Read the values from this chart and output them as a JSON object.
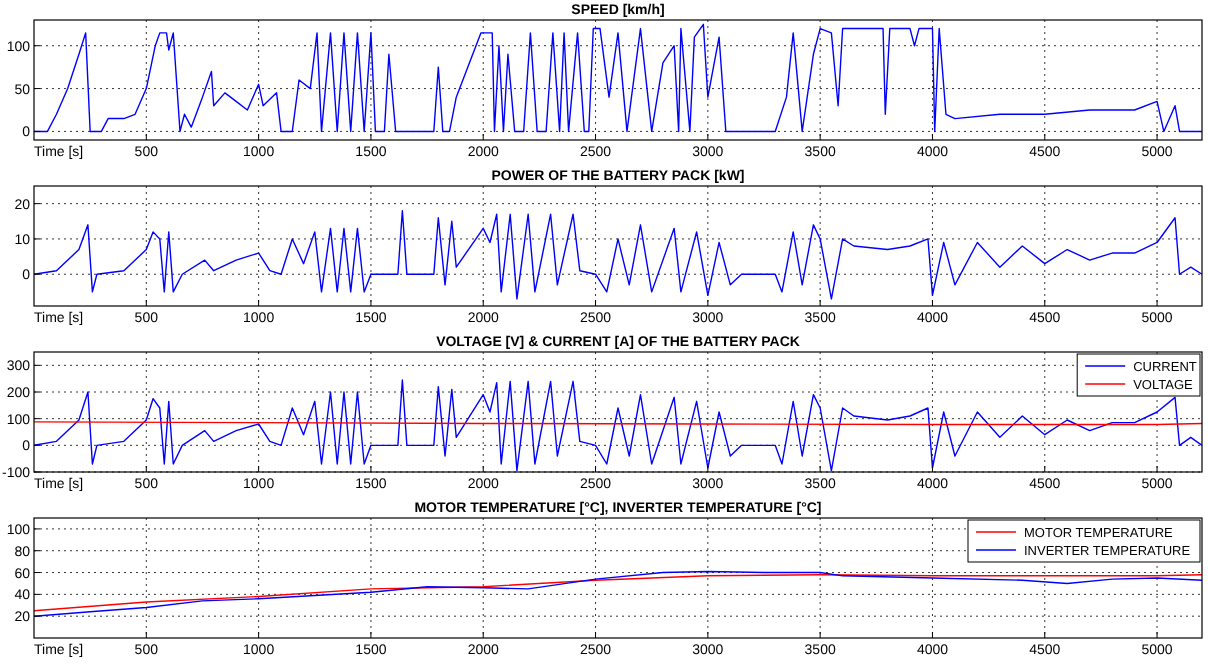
{
  "chart_data": [
    {
      "type": "line",
      "title": "SPEED [km/h]",
      "xlabel": "Time [s]",
      "xlim": [
        0,
        5200
      ],
      "xticks": [
        500,
        1000,
        1500,
        2000,
        2500,
        3000,
        3500,
        4000,
        4500,
        5000
      ],
      "ylim": [
        -10,
        130
      ],
      "yticks": [
        0,
        50,
        100
      ],
      "grid": true,
      "legend": false,
      "series": [
        {
          "color": "#0000ff",
          "x": [
            0,
            60,
            100,
            150,
            200,
            230,
            250,
            300,
            330,
            400,
            450,
            500,
            540,
            560,
            590,
            600,
            620,
            650,
            670,
            700,
            750,
            790,
            800,
            850,
            900,
            950,
            1000,
            1020,
            1080,
            1100,
            1150,
            1180,
            1230,
            1260,
            1280,
            1320,
            1350,
            1380,
            1410,
            1440,
            1470,
            1500,
            1520,
            1560,
            1580,
            1610,
            1780,
            1800,
            1820,
            1850,
            1880,
            1990,
            2040,
            2050,
            2070,
            2090,
            2110,
            2140,
            2180,
            2210,
            2240,
            2280,
            2310,
            2340,
            2360,
            2380,
            2420,
            2450,
            2470,
            2490,
            2520,
            2560,
            2600,
            2640,
            2700,
            2750,
            2800,
            2850,
            2870,
            2880,
            2920,
            2940,
            2980,
            3000,
            3050,
            3080,
            3300,
            3350,
            3380,
            3420,
            3470,
            3500,
            3550,
            3580,
            3600,
            3780,
            3790,
            3810,
            3900,
            3920,
            3940,
            4000,
            4010,
            4030,
            4060,
            4100,
            4300,
            4500,
            4700,
            4900,
            5000,
            5030,
            5080,
            5100,
            5200
          ],
          "values": [
            0,
            0,
            20,
            50,
            90,
            115,
            0,
            0,
            15,
            15,
            20,
            50,
            100,
            115,
            115,
            95,
            115,
            0,
            20,
            5,
            40,
            70,
            30,
            45,
            35,
            25,
            55,
            30,
            45,
            0,
            0,
            60,
            50,
            115,
            0,
            115,
            0,
            115,
            0,
            115,
            0,
            115,
            0,
            0,
            90,
            0,
            0,
            75,
            0,
            0,
            40,
            115,
            115,
            0,
            100,
            0,
            90,
            0,
            0,
            115,
            0,
            0,
            115,
            0,
            115,
            0,
            115,
            0,
            0,
            120,
            120,
            40,
            115,
            0,
            120,
            0,
            80,
            100,
            0,
            120,
            0,
            110,
            125,
            40,
            110,
            0,
            0,
            40,
            115,
            0,
            90,
            120,
            115,
            30,
            120,
            120,
            20,
            120,
            120,
            100,
            120,
            120,
            0,
            120,
            20,
            15,
            20,
            20,
            25,
            25,
            35,
            0,
            30,
            0,
            0
          ]
        }
      ]
    },
    {
      "type": "line",
      "title": "POWER OF THE BATTERY PACK [kW]",
      "xlabel": "Time [s]",
      "xlim": [
        0,
        5200
      ],
      "xticks": [
        500,
        1000,
        1500,
        2000,
        2500,
        3000,
        3500,
        4000,
        4500,
        5000
      ],
      "ylim": [
        -9,
        25
      ],
      "yticks": [
        0,
        10,
        20
      ],
      "grid": true,
      "legend": false,
      "series": [
        {
          "color": "#0000ff",
          "x": [
            0,
            100,
            200,
            240,
            260,
            280,
            400,
            500,
            530,
            560,
            580,
            600,
            620,
            660,
            760,
            800,
            900,
            1000,
            1050,
            1100,
            1150,
            1200,
            1250,
            1280,
            1320,
            1350,
            1380,
            1410,
            1440,
            1470,
            1500,
            1620,
            1640,
            1660,
            1780,
            1800,
            1830,
            1860,
            1880,
            2000,
            2030,
            2060,
            2080,
            2120,
            2150,
            2200,
            2230,
            2300,
            2330,
            2400,
            2430,
            2500,
            2550,
            2600,
            2650,
            2700,
            2750,
            2850,
            2880,
            2950,
            3000,
            3050,
            3100,
            3150,
            3300,
            3330,
            3380,
            3420,
            3470,
            3500,
            3550,
            3600,
            3650,
            3800,
            3900,
            3980,
            4000,
            4050,
            4100,
            4200,
            4300,
            4400,
            4500,
            4600,
            4700,
            4800,
            4900,
            5000,
            5080,
            5100,
            5150,
            5200
          ],
          "values": [
            0,
            1,
            7,
            14,
            -5,
            0,
            1,
            7,
            12,
            10,
            -5,
            12,
            -5,
            0,
            4,
            1,
            4,
            6,
            1,
            0,
            10,
            3,
            12,
            -5,
            13,
            -5,
            13,
            -5,
            13,
            -5,
            0,
            0,
            18,
            0,
            0,
            16,
            -3,
            15,
            2,
            13,
            9,
            17,
            -5,
            17,
            -7,
            17,
            -5,
            17,
            -3,
            17,
            1,
            0,
            -5,
            10,
            -3,
            14,
            -5,
            13,
            -5,
            12,
            -6,
            9,
            -3,
            0,
            0,
            -5,
            12,
            -3,
            14,
            10,
            -7,
            10,
            8,
            7,
            8,
            10,
            -6,
            9,
            -3,
            9,
            2,
            8,
            3,
            7,
            4,
            6,
            6,
            9,
            16,
            0,
            2,
            0
          ]
        }
      ]
    },
    {
      "type": "line",
      "title": "VOLTAGE [V] & CURRENT [A] OF THE BATTERY PACK",
      "xlabel": "Time [s]",
      "xlim": [
        0,
        5200
      ],
      "xticks": [
        500,
        1000,
        1500,
        2000,
        2500,
        3000,
        3500,
        4000,
        4500,
        5000
      ],
      "ylim": [
        -100,
        350
      ],
      "yticks": [
        -100,
        0,
        100,
        200,
        300
      ],
      "grid": true,
      "legend": "top right",
      "series": [
        {
          "name": "CURRENT",
          "color": "#0000ff",
          "x": [
            0,
            100,
            200,
            240,
            260,
            280,
            400,
            500,
            530,
            560,
            580,
            600,
            620,
            660,
            760,
            800,
            900,
            1000,
            1050,
            1100,
            1150,
            1200,
            1250,
            1280,
            1320,
            1350,
            1380,
            1410,
            1440,
            1470,
            1500,
            1620,
            1640,
            1660,
            1780,
            1800,
            1830,
            1860,
            1880,
            2000,
            2030,
            2060,
            2080,
            2120,
            2150,
            2200,
            2230,
            2300,
            2330,
            2400,
            2430,
            2500,
            2550,
            2600,
            2650,
            2700,
            2750,
            2850,
            2880,
            2950,
            3000,
            3050,
            3100,
            3150,
            3300,
            3330,
            3380,
            3420,
            3470,
            3500,
            3550,
            3600,
            3650,
            3800,
            3900,
            3980,
            4000,
            4050,
            4100,
            4200,
            4300,
            4400,
            4500,
            4600,
            4700,
            4800,
            4900,
            5000,
            5080,
            5100,
            5150,
            5200
          ],
          "values": [
            0,
            15,
            95,
            200,
            -70,
            0,
            15,
            95,
            175,
            140,
            -70,
            165,
            -70,
            0,
            55,
            15,
            55,
            80,
            15,
            0,
            140,
            40,
            165,
            -70,
            200,
            -70,
            200,
            -70,
            200,
            -70,
            0,
            0,
            245,
            0,
            0,
            220,
            -40,
            210,
            30,
            190,
            125,
            235,
            -70,
            240,
            -95,
            240,
            -70,
            240,
            -40,
            240,
            15,
            0,
            -70,
            140,
            -40,
            190,
            -70,
            180,
            -70,
            165,
            -85,
            125,
            -40,
            0,
            0,
            -70,
            165,
            -40,
            190,
            140,
            -95,
            140,
            110,
            95,
            110,
            140,
            -85,
            125,
            -40,
            125,
            30,
            110,
            40,
            95,
            55,
            85,
            85,
            125,
            180,
            0,
            30,
            0
          ]
        },
        {
          "name": "VOLTAGE",
          "color": "#ff0000",
          "x": [
            0,
            1000,
            2000,
            3000,
            4000,
            5000,
            5200
          ],
          "values": [
            88,
            85,
            82,
            80,
            78,
            78,
            82
          ]
        }
      ]
    },
    {
      "type": "line",
      "title": "MOTOR TEMPERATURE [°C], INVERTER TEMPERATURE [°C]",
      "xlabel": "Time [s]",
      "xlim": [
        0,
        5200
      ],
      "xticks": [
        500,
        1000,
        1500,
        2000,
        2500,
        3000,
        3500,
        4000,
        4500,
        5000
      ],
      "ylim": [
        0,
        110
      ],
      "yticks": [
        20,
        40,
        60,
        80,
        100
      ],
      "grid": true,
      "legend": "top right",
      "series": [
        {
          "name": "MOTOR TEMPERATURE",
          "color": "#ff0000",
          "x": [
            0,
            500,
            1000,
            1500,
            2000,
            2500,
            3000,
            3500,
            4000,
            4500,
            5000,
            5200
          ],
          "values": [
            25,
            33,
            38,
            45,
            47,
            53,
            57,
            58,
            57,
            57,
            57,
            58
          ]
        },
        {
          "name": "INVERTER TEMPERATURE",
          "color": "#0000ff",
          "x": [
            0,
            250,
            500,
            750,
            1000,
            1250,
            1500,
            1750,
            2000,
            2200,
            2500,
            2800,
            3000,
            3250,
            3500,
            3600,
            4000,
            4400,
            4600,
            4800,
            5000,
            5200
          ],
          "values": [
            20,
            24,
            28,
            34,
            36,
            39,
            42,
            47,
            46,
            45,
            54,
            60,
            61,
            60,
            60,
            57,
            55,
            53,
            50,
            54,
            55,
            53
          ]
        }
      ]
    }
  ]
}
